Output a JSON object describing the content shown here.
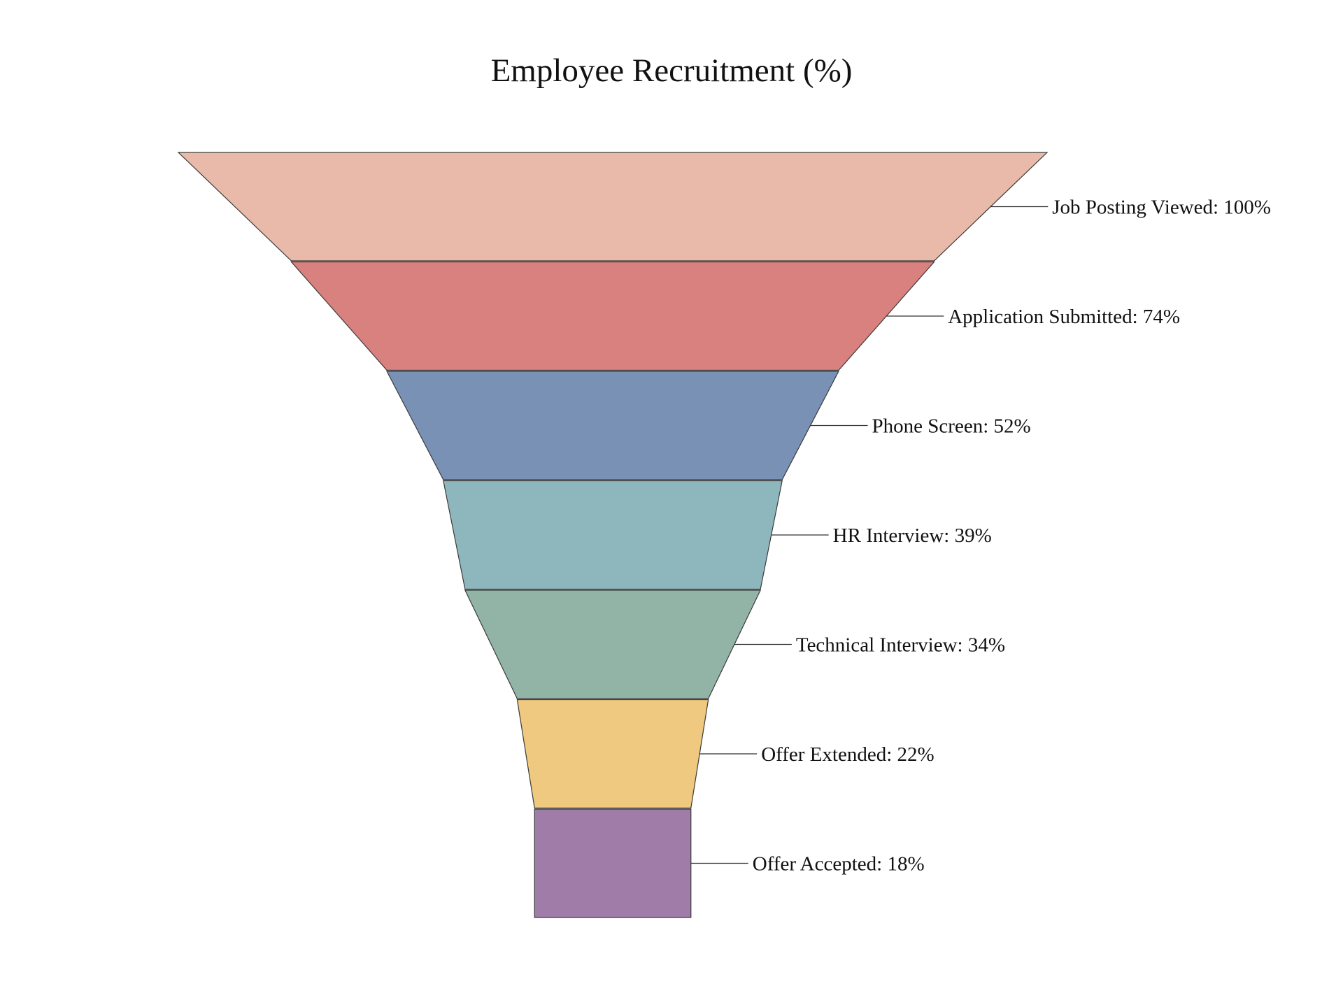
{
  "chart_data": {
    "type": "funnel",
    "title": "Employee Recruitment (%)",
    "stages": [
      {
        "name": "Job Posting Viewed",
        "value": 100,
        "color": "#E9B9A9"
      },
      {
        "name": "Application Submitted",
        "value": 74,
        "color": "#D8817E"
      },
      {
        "name": "Phone Screen",
        "value": 52,
        "color": "#7891B4"
      },
      {
        "name": "HR Interview",
        "value": 39,
        "color": "#8EB7BD"
      },
      {
        "name": "Technical Interview",
        "value": 34,
        "color": "#92B4A7"
      },
      {
        "name": "Offer Extended",
        "value": 22,
        "color": "#EFC97F"
      },
      {
        "name": "Offer Accepted",
        "value": 18,
        "color": "#A07CA9"
      }
    ],
    "label_format": "{name}: {value}%",
    "stroke_color": "#3a3a3a",
    "connector_color": "#333333"
  }
}
